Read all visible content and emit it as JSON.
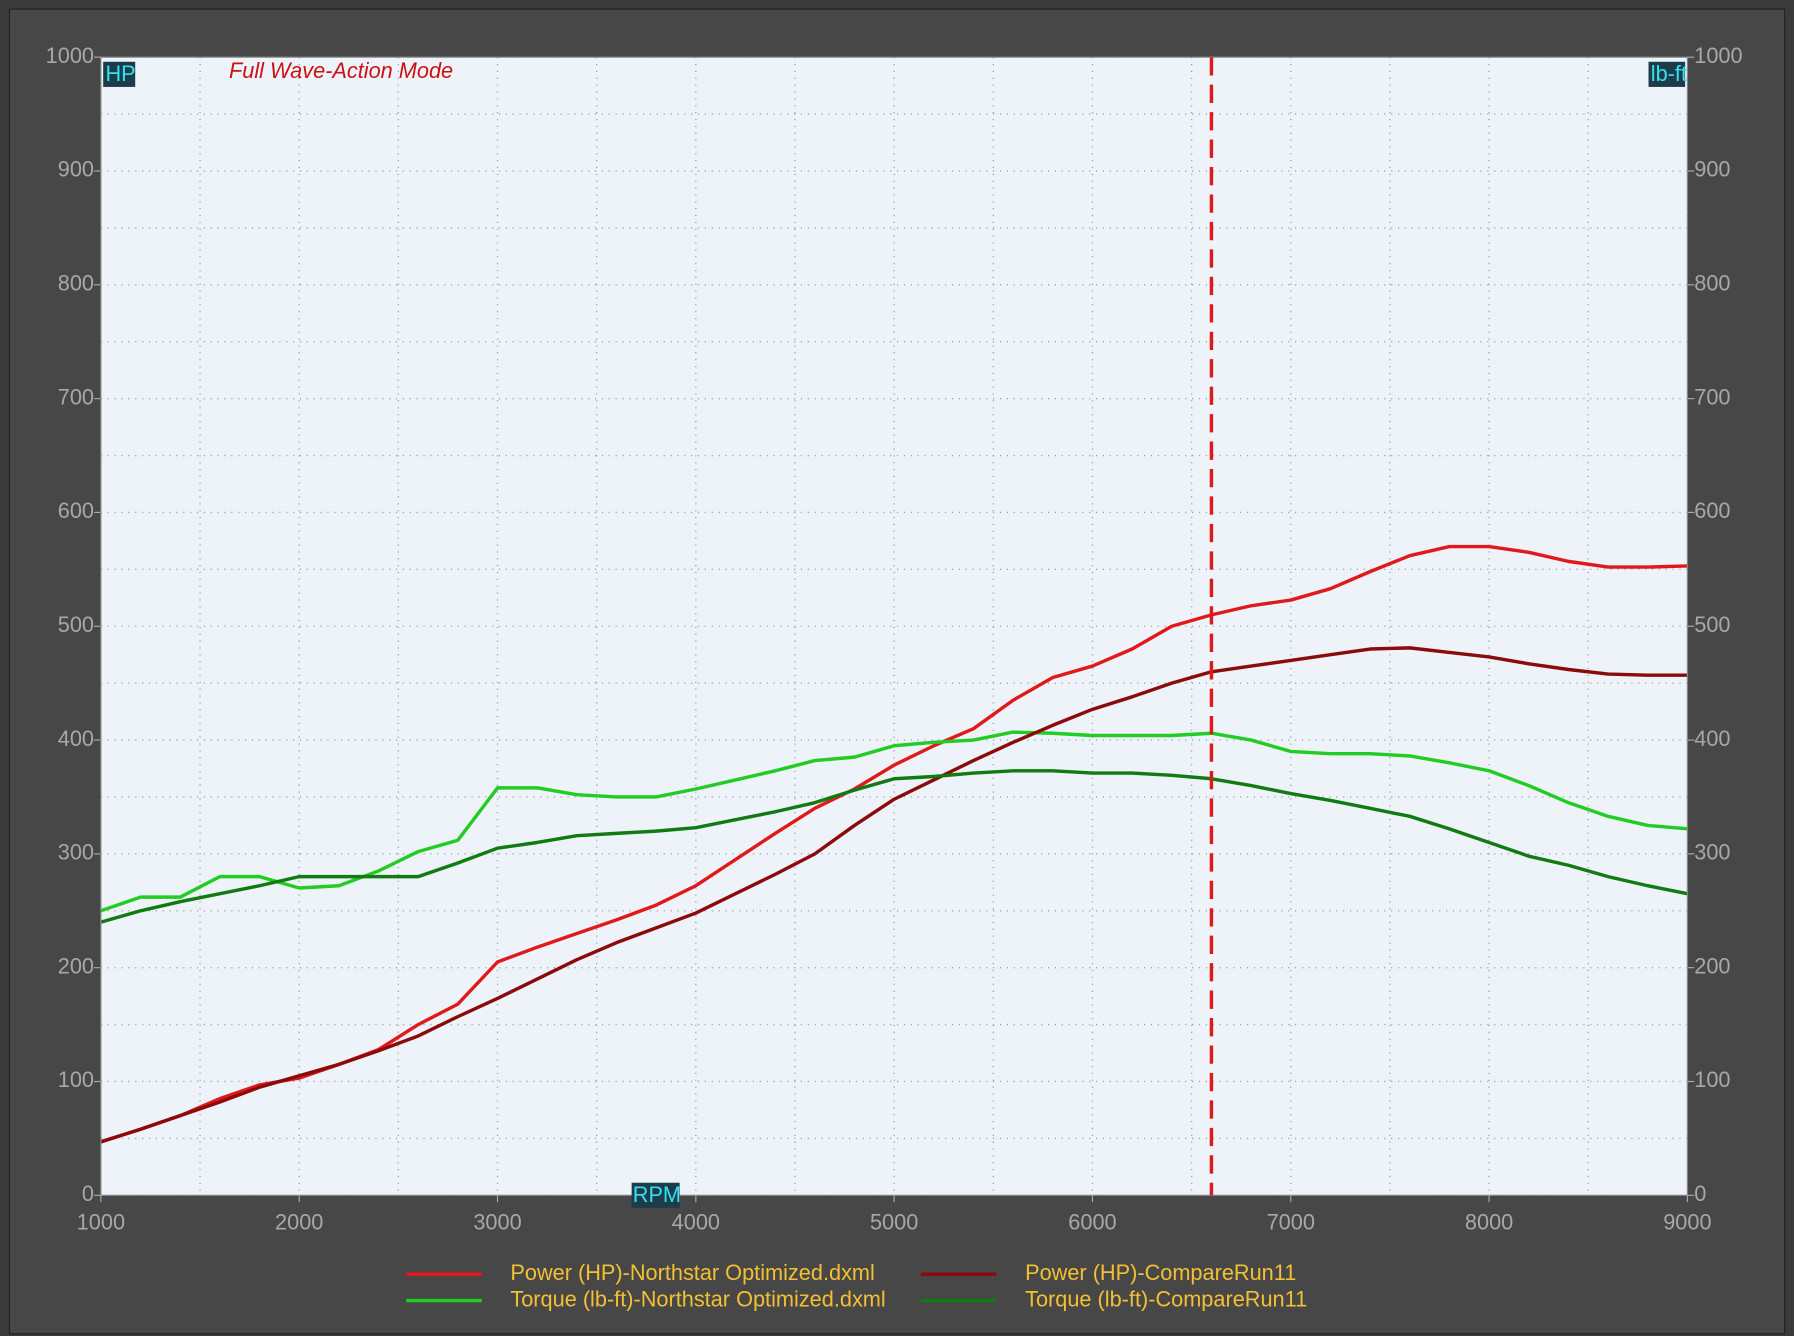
{
  "chart_data": {
    "type": "line",
    "title": "Full Wave-Action Mode",
    "x_label": "RPM",
    "y_label": "HP",
    "y2_label": "lb-ft",
    "x": [
      1000,
      1200,
      1400,
      1600,
      1800,
      2000,
      2200,
      2400,
      2600,
      2800,
      3000,
      3200,
      3400,
      3600,
      3800,
      4000,
      4200,
      4400,
      4600,
      4800,
      5000,
      5200,
      5400,
      5600,
      5800,
      6000,
      6200,
      6400,
      6600,
      6800,
      7000,
      7200,
      7400,
      7600,
      7800,
      8000,
      8200,
      8400,
      8600,
      8800,
      9000
    ],
    "series": [
      {
        "name": "Power (HP)-Northstar Optimized.dxml",
        "color": "#e01a1a",
        "axis": "y",
        "values": [
          47,
          58,
          70,
          85,
          97,
          103,
          115,
          128,
          150,
          168,
          205,
          218,
          230,
          242,
          255,
          272,
          295,
          318,
          340,
          357,
          378,
          395,
          410,
          435,
          455,
          465,
          480,
          500,
          510,
          518,
          523,
          533,
          548,
          562,
          570,
          570,
          565,
          557,
          552,
          552,
          553
        ]
      },
      {
        "name": "Torque (lb-ft)-Northstar Optimized.dxml",
        "color": "#22cc22",
        "axis": "y2",
        "values": [
          250,
          262,
          262,
          280,
          280,
          270,
          272,
          285,
          302,
          312,
          358,
          358,
          352,
          350,
          350,
          357,
          365,
          373,
          382,
          385,
          395,
          398,
          400,
          407,
          406,
          404,
          404,
          404,
          406,
          400,
          390,
          388,
          388,
          386,
          380,
          373,
          360,
          345,
          333,
          325,
          322
        ]
      },
      {
        "name": "Power (HP)-CompareRun11",
        "color": "#8b0a0a",
        "axis": "y",
        "values": [
          47,
          58,
          70,
          82,
          95,
          105,
          115,
          127,
          140,
          157,
          173,
          190,
          207,
          222,
          235,
          248,
          265,
          282,
          300,
          325,
          348,
          365,
          382,
          398,
          413,
          427,
          438,
          450,
          460,
          465,
          470,
          475,
          480,
          481,
          477,
          473,
          467,
          462,
          458,
          457,
          457
        ]
      },
      {
        "name": "Torque (lb-ft)-CompareRun11",
        "color": "#117a11",
        "axis": "y2",
        "values": [
          240,
          250,
          258,
          265,
          272,
          280,
          280,
          280,
          280,
          292,
          305,
          310,
          316,
          318,
          320,
          323,
          330,
          337,
          345,
          356,
          366,
          368,
          371,
          373,
          373,
          371,
          371,
          369,
          366,
          360,
          353,
          347,
          340,
          333,
          322,
          310,
          298,
          290,
          280,
          272,
          265
        ]
      }
    ],
    "xlim": [
      1000,
      9000
    ],
    "xticks": [
      1000,
      2000,
      3000,
      4000,
      5000,
      6000,
      7000,
      8000,
      9000
    ],
    "ylim": [
      0,
      1000
    ],
    "yticks": [
      0,
      100,
      200,
      300,
      400,
      500,
      600,
      700,
      800,
      900,
      1000
    ],
    "y2lim": [
      0,
      1000
    ],
    "y2ticks": [
      0,
      100,
      200,
      300,
      400,
      500,
      600,
      700,
      800,
      900,
      1000
    ],
    "marker_x": 6600,
    "grid": true
  }
}
